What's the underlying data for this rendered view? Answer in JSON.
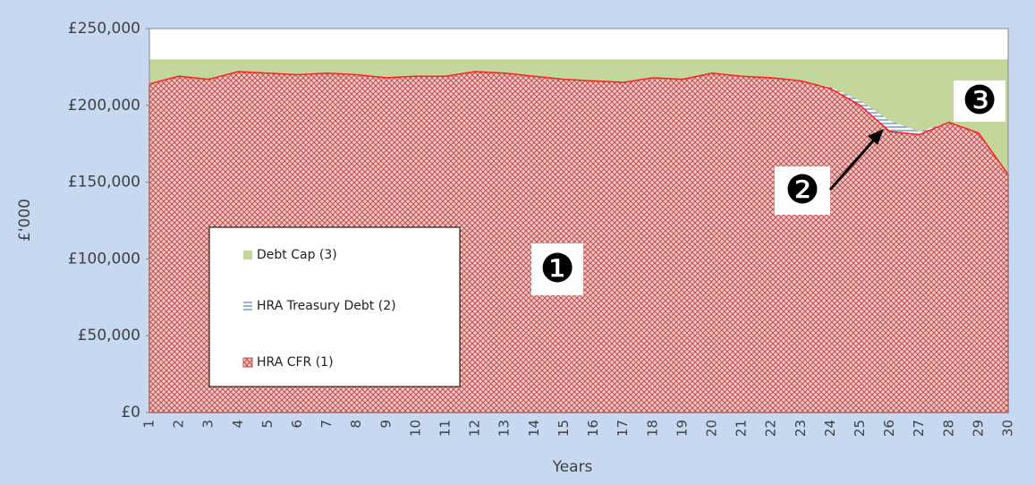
{
  "chart_data": {
    "type": "area",
    "x_label": "Years",
    "y_label": "£'000",
    "categories": [
      "1",
      "2",
      "3",
      "4",
      "5",
      "6",
      "7",
      "8",
      "9",
      "10",
      "11",
      "12",
      "13",
      "14",
      "15",
      "16",
      "17",
      "18",
      "19",
      "20",
      "21",
      "22",
      "23",
      "24",
      "25",
      "26",
      "27",
      "28",
      "29",
      "30"
    ],
    "series": [
      {
        "name": "Debt Cap (3)",
        "color": "#c3d69b",
        "values": [
          230000,
          230000,
          230000,
          230000,
          230000,
          230000,
          230000,
          230000,
          230000,
          230000,
          230000,
          230000,
          230000,
          230000,
          230000,
          230000,
          230000,
          230000,
          230000,
          230000,
          230000,
          230000,
          230000,
          230000,
          230000,
          230000,
          230000,
          230000,
          230000,
          230000
        ]
      },
      {
        "name": "HRA Treasury Debt (2)",
        "color": "#4f81bd",
        "values": [
          214000,
          219000,
          217000,
          222000,
          221000,
          220000,
          221000,
          220000,
          218000,
          219000,
          219000,
          222000,
          221000,
          219000,
          217000,
          216000,
          215000,
          218000,
          217000,
          221000,
          219000,
          218000,
          216000,
          212000,
          203000,
          190000,
          183000,
          189000,
          182000,
          155000
        ]
      },
      {
        "name": "HRA CFR (1)",
        "color": "#c0504d",
        "values": [
          214000,
          219000,
          217000,
          222000,
          221000,
          220000,
          221000,
          220000,
          218000,
          219000,
          219000,
          222000,
          221000,
          219000,
          217000,
          216000,
          215000,
          218000,
          217000,
          221000,
          219000,
          218000,
          216000,
          211000,
          200000,
          183000,
          181000,
          189000,
          182000,
          155000
        ]
      }
    ],
    "ylim": [
      0,
      250000
    ],
    "yticks": [
      {
        "value": 0,
        "label": "£0"
      },
      {
        "value": 50000,
        "label": "£50,000"
      },
      {
        "value": 100000,
        "label": "£100,000"
      },
      {
        "value": 150000,
        "label": "£150,000"
      },
      {
        "value": 200000,
        "label": "£200,000"
      },
      {
        "value": 250000,
        "label": "£250,000"
      }
    ],
    "annotations": [
      "❶",
      "❷",
      "❸"
    ]
  }
}
